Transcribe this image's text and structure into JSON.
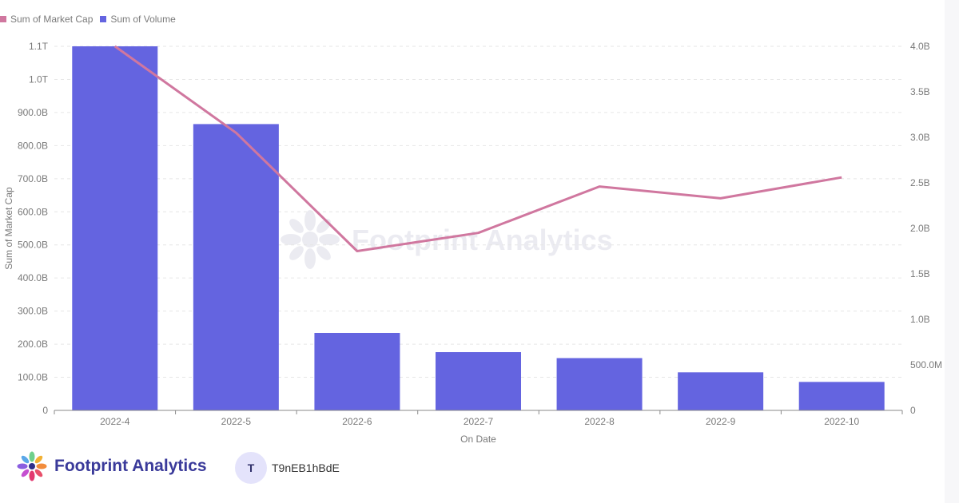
{
  "legend": [
    {
      "label": "Sum of Market Cap",
      "color": "#d0779f"
    },
    {
      "label": "Sum of Volume",
      "color": "#6464e0"
    }
  ],
  "watermark": "Footprint Analytics",
  "footer": {
    "brand": "Footprint Analytics",
    "user_initial": "T",
    "user_name": "T9nEB1hBdE"
  },
  "chart_data": {
    "type": "bar",
    "xlabel": "On Date",
    "ylabel": "Sum of Market Cap",
    "categories": [
      "2022-4",
      "2022-5",
      "2022-6",
      "2022-7",
      "2022-8",
      "2022-9",
      "2022-10"
    ],
    "left_axis": {
      "ticks": [
        0,
        100000000000,
        200000000000,
        300000000000,
        400000000000,
        500000000000,
        600000000000,
        700000000000,
        800000000000,
        900000000000,
        1000000000000,
        1100000000000
      ],
      "tick_labels": [
        "0",
        "100.0B",
        "200.0B",
        "300.0B",
        "400.0B",
        "500.0B",
        "600.0B",
        "700.0B",
        "800.0B",
        "900.0B",
        "1.0T",
        "1.1T"
      ],
      "ylim": [
        0,
        1100000000000
      ]
    },
    "right_axis": {
      "ticks": [
        0,
        500000000,
        1000000000,
        1500000000,
        2000000000,
        2500000000,
        3000000000,
        3500000000,
        4000000000
      ],
      "tick_labels": [
        "0",
        "500.0M",
        "1.0B",
        "1.5B",
        "2.0B",
        "2.5B",
        "3.0B",
        "3.5B",
        "4.0B"
      ],
      "ylim": [
        0,
        4000000000
      ]
    },
    "series": [
      {
        "name": "Sum of Volume",
        "type": "bar",
        "axis": "left",
        "color": "#6464e0",
        "values": [
          1100000000000,
          865000000000,
          234000000000,
          176000000000,
          158000000000,
          115000000000,
          86000000000
        ]
      },
      {
        "name": "Sum of Market Cap",
        "type": "line",
        "axis": "right",
        "color": "#d0779f",
        "values": [
          4000000000,
          3050000000,
          1750000000,
          1950000000,
          2460000000,
          2330000000,
          2560000000
        ]
      }
    ],
    "grid": true,
    "legend_position": "top-left"
  }
}
